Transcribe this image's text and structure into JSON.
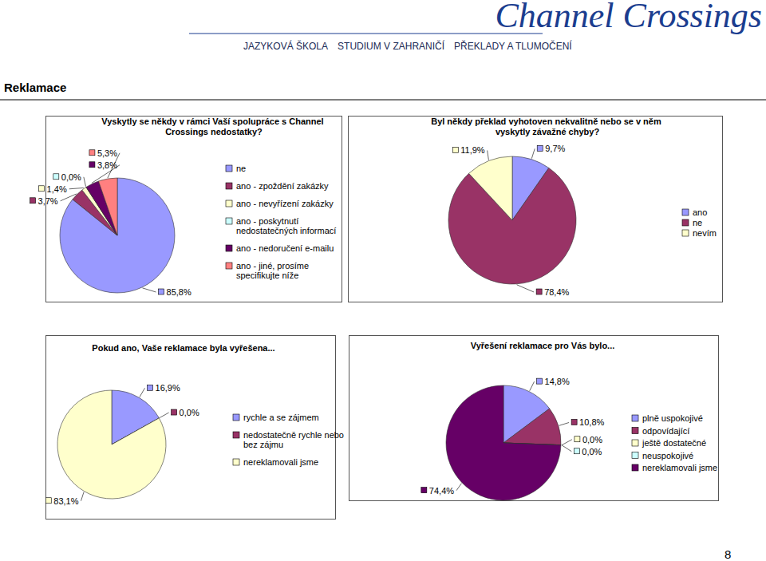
{
  "page": {
    "logo": "Channel Crossings",
    "tagline": [
      "JAZYKOVÁ ŠKOLA",
      "STUDIUM V ZAHRANIČÍ",
      "PŘEKLADY A TLUMOČENÍ"
    ],
    "heading": "Reklamace",
    "page_number": 8
  },
  "chart_data": [
    {
      "type": "pie",
      "title": "Vyskytly se někdy v rámci Vaší spolupráce s Channel Crossings nedostatky?",
      "categories": [
        "ne",
        "ano - zpoždění zakázky",
        "ano - nevyřízení zakázky",
        "ano - poskytnutí nedostatečných informací",
        "ano - nedoručení e-mailu",
        "ano - jiné, prosíme specifikujte níže"
      ],
      "values": [
        85.8,
        3.7,
        1.4,
        0.0,
        3.8,
        5.3
      ],
      "value_labels": [
        "85,8%",
        "3,7%",
        "1,4%",
        "0,0%",
        "3,8%",
        "5,3%"
      ],
      "colors": [
        "#9999ff",
        "#993366",
        "#ffffcc",
        "#ccffff",
        "#660066",
        "#ff8080"
      ],
      "data_labels": true,
      "legend": "right"
    },
    {
      "type": "pie",
      "title": "Byl někdy překlad vyhotoven nekvalitně nebo se v něm vyskytly závažné chyby?",
      "categories": [
        "ano",
        "ne",
        "nevím"
      ],
      "values": [
        9.7,
        78.4,
        11.9
      ],
      "value_labels": [
        "9,7%",
        "78,4%",
        "11,9%"
      ],
      "colors": [
        "#9999ff",
        "#993366",
        "#ffffcc"
      ],
      "data_labels": true,
      "legend": "right"
    },
    {
      "type": "pie",
      "title": "Pokud ano, Vaše reklamace byla vyřešena...",
      "categories": [
        "rychle a se zájmem",
        "nedostatečně rychle nebo bez zájmu",
        "nereklamovali jsme"
      ],
      "values": [
        16.9,
        0.0,
        83.1
      ],
      "value_labels": [
        "16,9%",
        "0,0%",
        "83,1%"
      ],
      "colors": [
        "#9999ff",
        "#993366",
        "#ffffcc"
      ],
      "data_labels": true,
      "legend": "right"
    },
    {
      "type": "pie",
      "title": "Vyřešení reklamace pro Vás bylo...",
      "categories": [
        "plně uspokojivé",
        "odpovídající",
        "ještě dostatečné",
        "neuspokojivé",
        "nereklamovali jsme"
      ],
      "values": [
        14.8,
        10.8,
        0.0,
        0.0,
        74.4
      ],
      "value_labels": [
        "14,8%",
        "10,8%",
        "0,0%",
        "0,0%",
        "74,4%"
      ],
      "colors": [
        "#9999ff",
        "#993366",
        "#ffffcc",
        "#ccffff",
        "#660066"
      ],
      "data_labels": true,
      "legend": "right"
    }
  ]
}
